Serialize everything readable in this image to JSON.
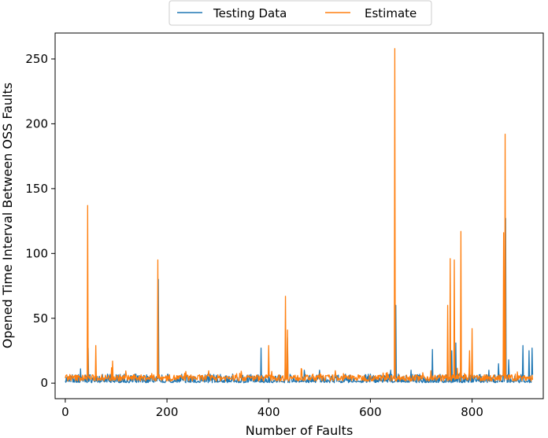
{
  "chart_data": {
    "type": "line",
    "xlabel": "Number of Faults",
    "ylabel": "Opened Time Interval Between OSS Faults",
    "xlim": [
      -20,
      940
    ],
    "ylim": [
      -12,
      270
    ],
    "x_ticks": [
      0,
      200,
      400,
      600,
      800
    ],
    "y_ticks": [
      0,
      50,
      100,
      150,
      200,
      250
    ],
    "grid": false,
    "legend_position": "top-center",
    "n_points": 920,
    "series": [
      {
        "name": "Testing Data",
        "color": "#1f77b4",
        "baseline": 1.5,
        "peaks": [
          [
            30,
            11
          ],
          [
            45,
            27
          ],
          [
            183,
            80
          ],
          [
            385,
            27
          ],
          [
            433,
            25
          ],
          [
            437,
            35
          ],
          [
            470,
            10
          ],
          [
            500,
            10
          ],
          [
            640,
            10
          ],
          [
            650,
            60
          ],
          [
            680,
            10
          ],
          [
            722,
            26
          ],
          [
            752,
            26
          ],
          [
            760,
            25
          ],
          [
            768,
            31
          ],
          [
            778,
            28
          ],
          [
            795,
            17
          ],
          [
            833,
            10
          ],
          [
            852,
            15
          ],
          [
            862,
            28
          ],
          [
            866,
            127
          ],
          [
            872,
            18
          ],
          [
            900,
            29
          ],
          [
            912,
            25
          ],
          [
            918,
            27
          ]
        ]
      },
      {
        "name": "Estimate",
        "color": "#ff7f0e",
        "baseline": 4,
        "peaks": [
          [
            44,
            137
          ],
          [
            60,
            29
          ],
          [
            93,
            17
          ],
          [
            182,
            95
          ],
          [
            400,
            29
          ],
          [
            433,
            67
          ],
          [
            437,
            41
          ],
          [
            648,
            258
          ],
          [
            752,
            60
          ],
          [
            757,
            96
          ],
          [
            765,
            95
          ],
          [
            778,
            117
          ],
          [
            795,
            25
          ],
          [
            800,
            42
          ],
          [
            862,
            116
          ],
          [
            865,
            192
          ]
        ]
      }
    ]
  }
}
